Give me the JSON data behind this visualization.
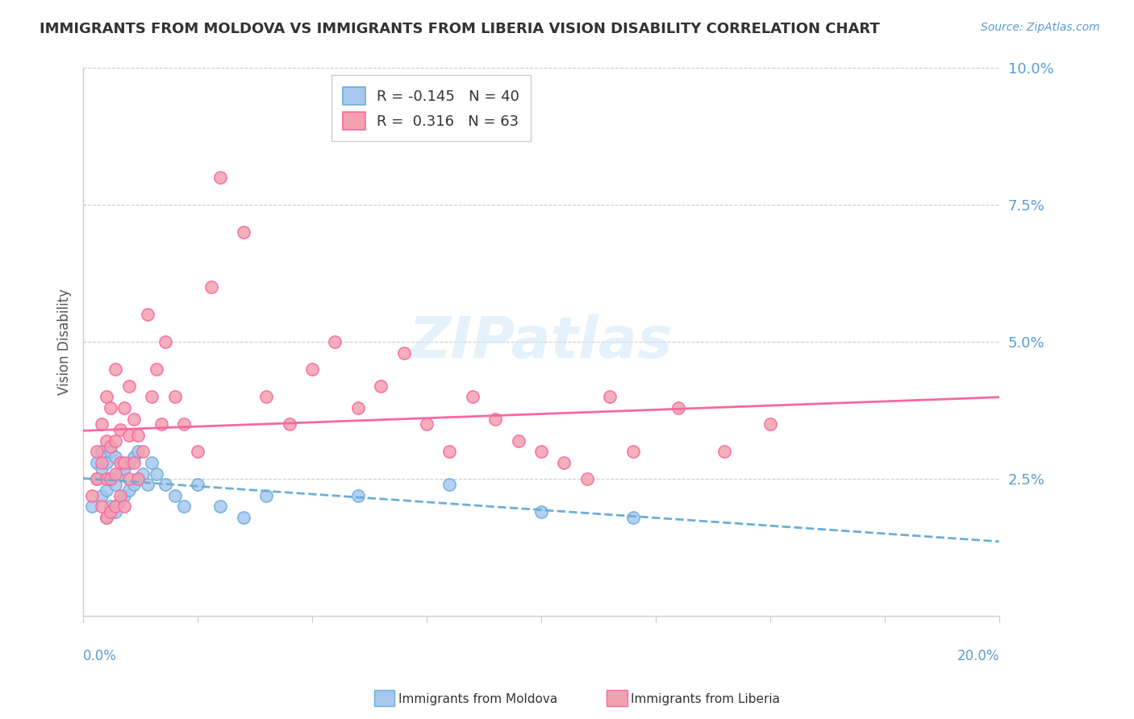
{
  "title": "IMMIGRANTS FROM MOLDOVA VS IMMIGRANTS FROM LIBERIA VISION DISABILITY CORRELATION CHART",
  "source": "Source: ZipAtlas.com",
  "ylabel": "Vision Disability",
  "xlim": [
    0.0,
    0.2
  ],
  "ylim": [
    0.0,
    0.1
  ],
  "yticks": [
    0.0,
    0.025,
    0.05,
    0.075,
    0.1
  ],
  "ytick_labels": [
    "",
    "2.5%",
    "5.0%",
    "7.5%",
    "10.0%"
  ],
  "moldova_color": "#a8c8f0",
  "liberia_color": "#f4a0b0",
  "moldova_line_color": "#6baed6",
  "liberia_line_color": "#f768a1",
  "moldova_R": -0.145,
  "moldova_N": 40,
  "liberia_R": 0.316,
  "liberia_N": 63,
  "background_color": "#ffffff",
  "grid_color": "#cccccc",
  "title_color": "#333333",
  "moldova_scatter_x": [
    0.002,
    0.003,
    0.003,
    0.004,
    0.004,
    0.004,
    0.005,
    0.005,
    0.005,
    0.006,
    0.006,
    0.006,
    0.007,
    0.007,
    0.007,
    0.008,
    0.008,
    0.009,
    0.009,
    0.01,
    0.01,
    0.011,
    0.011,
    0.012,
    0.012,
    0.013,
    0.014,
    0.015,
    0.016,
    0.018,
    0.02,
    0.022,
    0.025,
    0.03,
    0.035,
    0.04,
    0.06,
    0.08,
    0.1,
    0.12
  ],
  "moldova_scatter_y": [
    0.02,
    0.025,
    0.028,
    0.022,
    0.027,
    0.03,
    0.018,
    0.023,
    0.028,
    0.02,
    0.025,
    0.03,
    0.019,
    0.024,
    0.029,
    0.021,
    0.026,
    0.022,
    0.027,
    0.023,
    0.028,
    0.024,
    0.029,
    0.025,
    0.03,
    0.026,
    0.024,
    0.028,
    0.026,
    0.024,
    0.022,
    0.02,
    0.024,
    0.02,
    0.018,
    0.022,
    0.022,
    0.024,
    0.019,
    0.018
  ],
  "liberia_scatter_x": [
    0.002,
    0.003,
    0.003,
    0.004,
    0.004,
    0.004,
    0.005,
    0.005,
    0.005,
    0.005,
    0.006,
    0.006,
    0.006,
    0.006,
    0.007,
    0.007,
    0.007,
    0.007,
    0.008,
    0.008,
    0.008,
    0.009,
    0.009,
    0.009,
    0.01,
    0.01,
    0.01,
    0.011,
    0.011,
    0.012,
    0.012,
    0.013,
    0.014,
    0.015,
    0.016,
    0.017,
    0.018,
    0.02,
    0.022,
    0.025,
    0.028,
    0.03,
    0.035,
    0.04,
    0.045,
    0.05,
    0.055,
    0.06,
    0.065,
    0.07,
    0.075,
    0.08,
    0.085,
    0.09,
    0.095,
    0.1,
    0.105,
    0.11,
    0.115,
    0.12,
    0.13,
    0.14,
    0.15
  ],
  "liberia_scatter_y": [
    0.022,
    0.025,
    0.03,
    0.02,
    0.028,
    0.035,
    0.018,
    0.025,
    0.032,
    0.04,
    0.019,
    0.025,
    0.031,
    0.038,
    0.02,
    0.026,
    0.032,
    0.045,
    0.022,
    0.028,
    0.034,
    0.02,
    0.028,
    0.038,
    0.025,
    0.033,
    0.042,
    0.028,
    0.036,
    0.025,
    0.033,
    0.03,
    0.055,
    0.04,
    0.045,
    0.035,
    0.05,
    0.04,
    0.035,
    0.03,
    0.06,
    0.08,
    0.07,
    0.04,
    0.035,
    0.045,
    0.05,
    0.038,
    0.042,
    0.048,
    0.035,
    0.03,
    0.04,
    0.036,
    0.032,
    0.03,
    0.028,
    0.025,
    0.04,
    0.03,
    0.038,
    0.03,
    0.035
  ]
}
